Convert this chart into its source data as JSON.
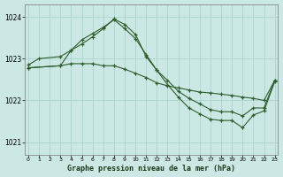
{
  "title": "Graphe pression niveau de la mer (hPa)",
  "bg_color": "#cce8e4",
  "grid_color": "#aad4cc",
  "line_color": "#2d5e2d",
  "ylim": [
    1020.7,
    1024.3
  ],
  "yticks": [
    1021,
    1022,
    1023,
    1024
  ],
  "xlim": [
    -0.3,
    23.3
  ],
  "xticks": [
    0,
    1,
    2,
    3,
    4,
    5,
    6,
    7,
    8,
    9,
    10,
    11,
    12,
    13,
    14,
    15,
    16,
    17,
    18,
    19,
    20,
    21,
    22,
    23
  ],
  "series1_x": [
    0,
    1,
    3,
    4,
    5,
    6,
    7,
    8,
    9,
    10,
    11,
    12,
    13,
    14,
    15,
    16,
    17,
    18,
    19,
    20,
    21,
    22,
    23
  ],
  "series1_y": [
    1022.85,
    1023.0,
    1023.05,
    1023.2,
    1023.45,
    1023.6,
    1023.75,
    1023.93,
    1023.72,
    1023.48,
    1023.1,
    1022.72,
    1022.48,
    1022.22,
    1022.05,
    1021.92,
    1021.78,
    1021.73,
    1021.73,
    1021.63,
    1021.82,
    1021.82,
    1022.48
  ],
  "series2_x": [
    0,
    3,
    4,
    5,
    6,
    7,
    8,
    9,
    10,
    11,
    12,
    13,
    14,
    15,
    16,
    17,
    18,
    19,
    20,
    21,
    22,
    23
  ],
  "series2_y": [
    1022.78,
    1022.83,
    1022.88,
    1022.88,
    1022.88,
    1022.83,
    1022.83,
    1022.75,
    1022.65,
    1022.55,
    1022.42,
    1022.35,
    1022.3,
    1022.25,
    1022.2,
    1022.18,
    1022.15,
    1022.12,
    1022.08,
    1022.05,
    1022.0,
    1022.48
  ],
  "series3_x": [
    0,
    3,
    4,
    5,
    6,
    7,
    8,
    9,
    10,
    11,
    12,
    13,
    14,
    15,
    16,
    17,
    18,
    19,
    20,
    21,
    22,
    23
  ],
  "series3_y": [
    1022.78,
    1022.83,
    1023.2,
    1023.35,
    1023.52,
    1023.72,
    1023.95,
    1023.82,
    1023.58,
    1023.05,
    1022.72,
    1022.38,
    1022.08,
    1021.82,
    1021.68,
    1021.55,
    1021.52,
    1021.52,
    1021.35,
    1021.65,
    1021.75,
    1022.45
  ]
}
